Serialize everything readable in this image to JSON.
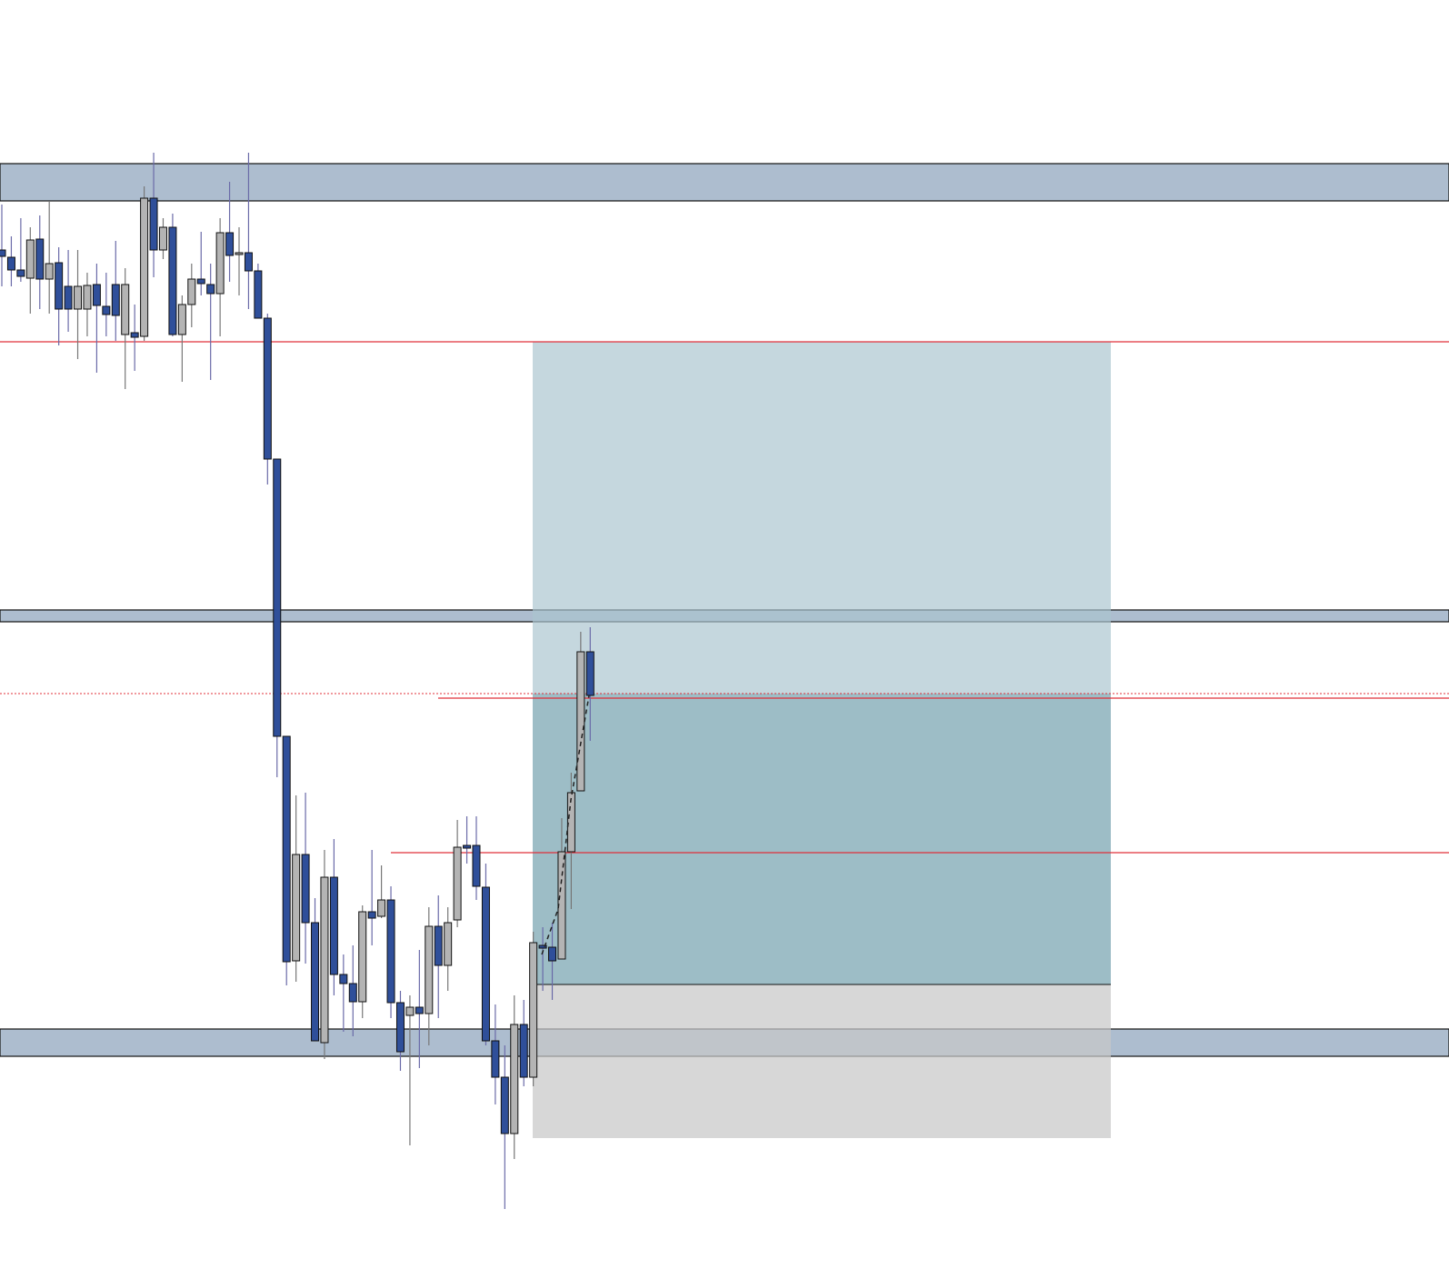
{
  "chart_data": {
    "type": "candlestick",
    "open": [
      112.5,
      111.7,
      110.3,
      109.4,
      113.7,
      109.3,
      111.1,
      108.5,
      106,
      106,
      108.7,
      106.3,
      108.7,
      103.2,
      103.4,
      103,
      118.2,
      112.5,
      115,
      103.2,
      106.5,
      109.3,
      108.7,
      107.7,
      114.4,
      112,
      112.2,
      110.2,
      105,
      89.5,
      59,
      34.3,
      46,
      38.5,
      25.3,
      43.5,
      32.8,
      31.8,
      29.8,
      39.7,
      39.2,
      41,
      29.7,
      28.3,
      29.2,
      28.5,
      38.1,
      33.8,
      38.8,
      47,
      47,
      42.4,
      25.5,
      21.5,
      15.3,
      27.3,
      21.5,
      36,
      35.8,
      34.5,
      46.3,
      53,
      68.3
    ],
    "high": [
      117.5,
      114,
      116,
      115,
      116.3,
      117.8,
      112.8,
      112.5,
      112.5,
      110,
      111,
      110,
      113.5,
      110.5,
      106.5,
      119.5,
      123.2,
      116,
      116.5,
      107.5,
      111,
      114.5,
      111,
      116,
      120,
      115,
      123.2,
      111,
      105.5,
      89.5,
      59,
      52.5,
      52.8,
      41.2,
      46.5,
      47.7,
      35,
      36,
      40.4,
      46.5,
      44.8,
      42.5,
      31,
      30.5,
      35.5,
      40.2,
      41.5,
      40.2,
      49.8,
      50.2,
      50.2,
      45,
      29.5,
      25,
      30.5,
      30,
      37.5,
      38,
      38.5,
      50,
      55,
      70.5,
      71
    ],
    "low": [
      108.5,
      108.5,
      109,
      105.5,
      106,
      105.5,
      102,
      103.5,
      100.5,
      103,
      99,
      103,
      102.5,
      97.2,
      99.2,
      102.5,
      109.5,
      111.5,
      103,
      98,
      104,
      107.5,
      98.2,
      103,
      109,
      107.5,
      106,
      105,
      86.7,
      54.5,
      31.6,
      32,
      34,
      25.5,
      23.5,
      30.5,
      26.5,
      26,
      28,
      36,
      39,
      28,
      22.2,
      14,
      22.5,
      25,
      28,
      31,
      38,
      45,
      41,
      25,
      18.5,
      7,
      12.5,
      20.5,
      20.5,
      31,
      30,
      34.5,
      40,
      53,
      58.5
    ],
    "close": [
      111.8,
      110.3,
      109.6,
      113.6,
      109.3,
      111,
      106,
      106,
      108.5,
      108.6,
      106.4,
      105.4,
      105.3,
      108.7,
      102.9,
      118.2,
      112.5,
      115,
      103.2,
      106.5,
      109.3,
      108.8,
      107.7,
      114.4,
      111.9,
      112.2,
      110.2,
      105,
      89.5,
      59,
      34.2,
      46,
      38.5,
      25.5,
      43.5,
      32.8,
      31.8,
      29.8,
      39.7,
      39,
      41,
      29.7,
      24.3,
      29.2,
      28.5,
      38.1,
      33.8,
      38.5,
      46.8,
      46.7,
      42.5,
      25.5,
      21.5,
      15.3,
      27.3,
      21.5,
      36.3,
      35.7,
      34.3,
      46.3,
      52.8,
      68.3,
      63.5
    ],
    "colors": {
      "up": "#b4b4b4",
      "down": "#2f4f9a",
      "zone": "#adbdcf",
      "level": "#e0303a"
    },
    "ylim": [
      0,
      140
    ],
    "zones": [
      {
        "top": 122,
        "bottom": 117.9
      },
      {
        "top": 72.9,
        "bottom": 71.6
      },
      {
        "top": 26.8,
        "bottom": 23.8
      }
    ],
    "levels": [
      102.4,
      63.2,
      46.2
    ],
    "entry": 63.7,
    "position": [
      102.4,
      63.7,
      31.7,
      14.8
    ]
  }
}
